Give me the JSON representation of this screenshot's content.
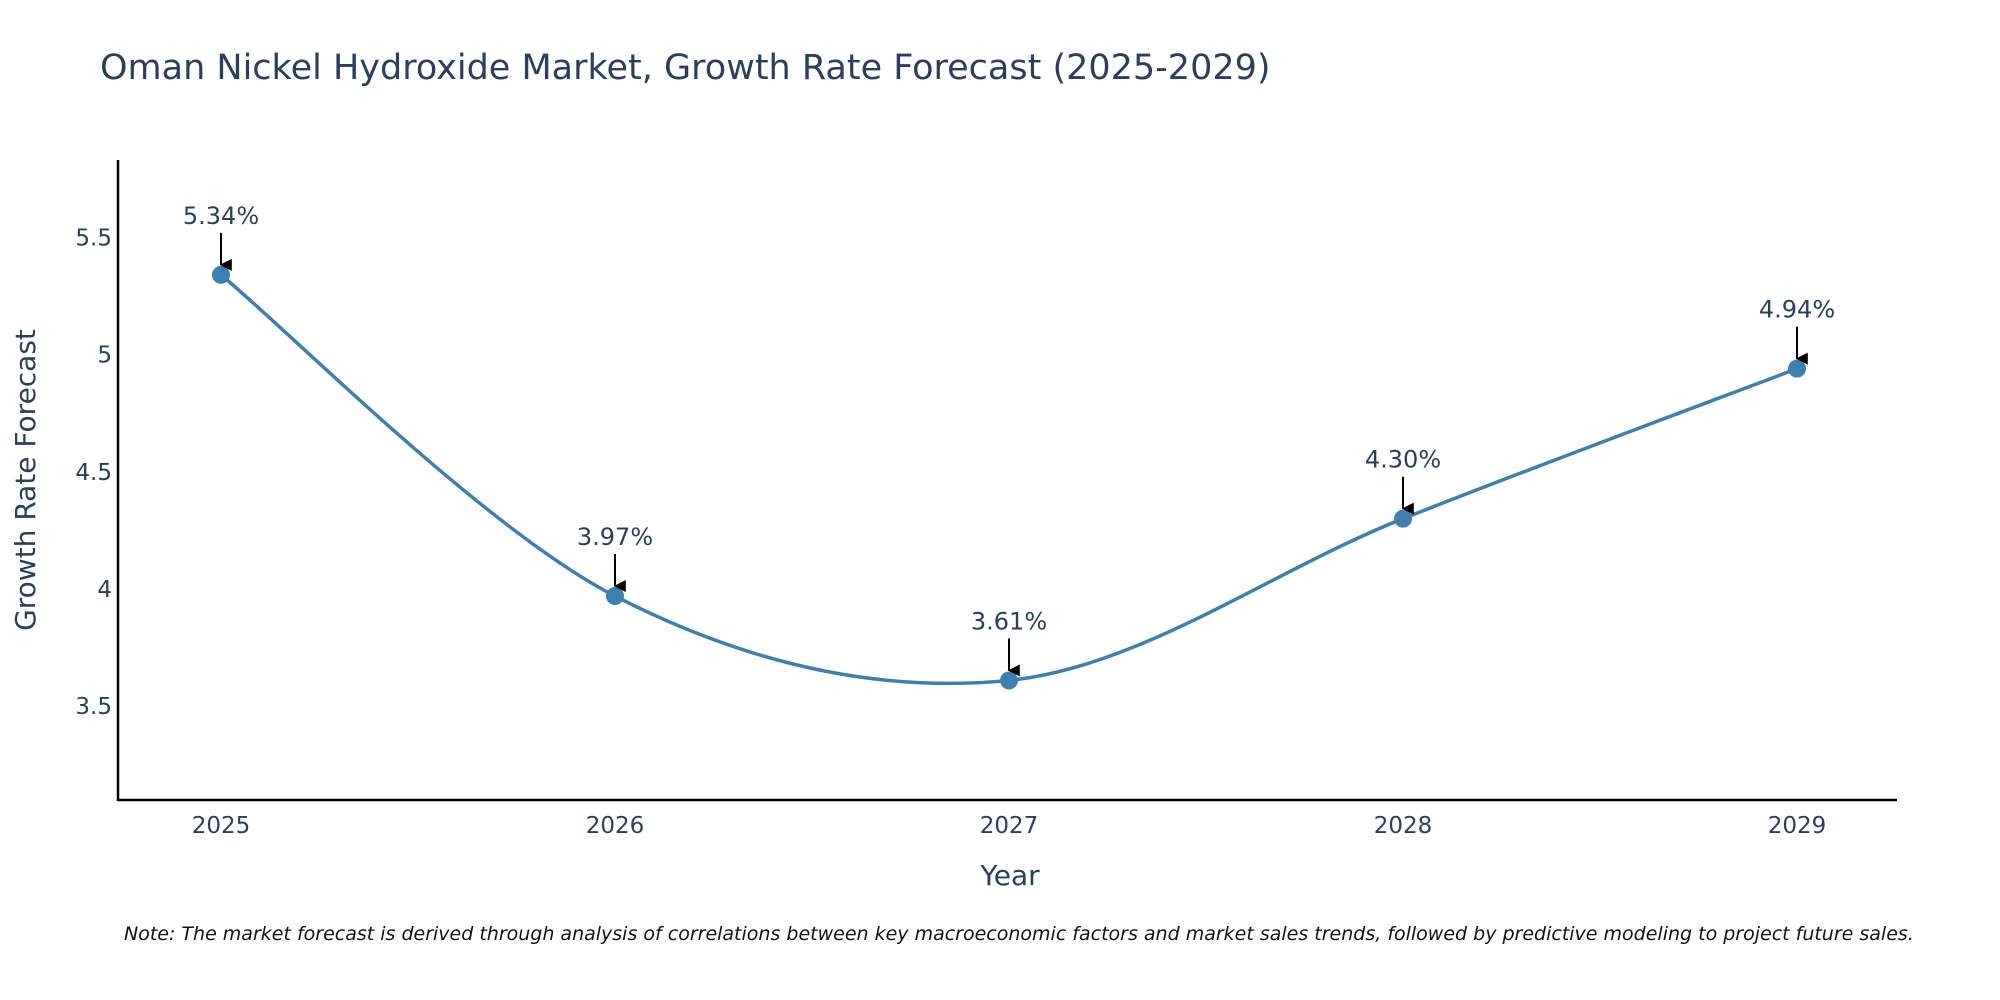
{
  "chart_data": {
    "type": "line",
    "title": "Oman Nickel Hydroxide Market, Growth Rate Forecast (2025-2029)",
    "xlabel": "Year",
    "ylabel": "Growth Rate Forecast",
    "categories": [
      "2025",
      "2026",
      "2027",
      "2028",
      "2029"
    ],
    "series": [
      {
        "name": "Growth Rate Forecast",
        "values": [
          5.34,
          3.97,
          3.61,
          4.3,
          4.94
        ],
        "labels": [
          "5.34%",
          "3.97%",
          "3.61%",
          "4.30%",
          "4.94%"
        ]
      }
    ],
    "yticks": [
      3.5,
      4,
      4.5,
      5,
      5.5
    ],
    "ytick_labels": [
      "3.5",
      "4",
      "4.5",
      "5",
      "5.5"
    ],
    "ylim": [
      3.1,
      5.83
    ],
    "grid": false,
    "line_shape": "spline",
    "colors": {
      "line": "#3d7fae",
      "marker": "#3d7fae",
      "axis": "#000000",
      "text": "#2a3f5f",
      "arrow": "#000000"
    },
    "note": "Note: The market forecast is derived through analysis of correlations between key macroeconomic factors and market sales trends, followed by predictive modeling to project future sales."
  }
}
